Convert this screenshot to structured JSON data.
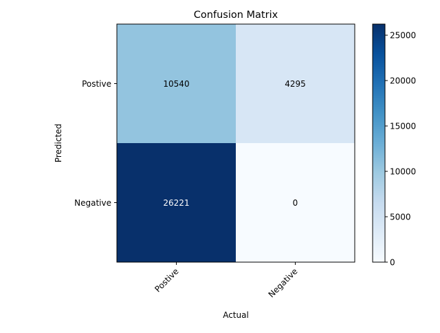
{
  "chart_data": {
    "type": "heatmap",
    "title": "Confusion Matrix",
    "xlabel": "Actual",
    "ylabel": "Predicted",
    "x_categories": [
      "Postive",
      "Negative"
    ],
    "y_categories": [
      "Postive",
      "Negative"
    ],
    "values": [
      [
        10540,
        4295
      ],
      [
        26221,
        0
      ]
    ],
    "value_range": [
      0,
      26221
    ],
    "colormap": "Blues",
    "colorbar_ticks": [
      0,
      5000,
      10000,
      15000,
      20000,
      25000
    ],
    "colorbar_tick_labels": [
      "0",
      "5000",
      "10000",
      "15000",
      "20000",
      "25000"
    ],
    "colors": {
      "low": "#f7fbff",
      "high": "#08306b",
      "label_light": "#ffffff",
      "label_dark": "#000000"
    }
  }
}
